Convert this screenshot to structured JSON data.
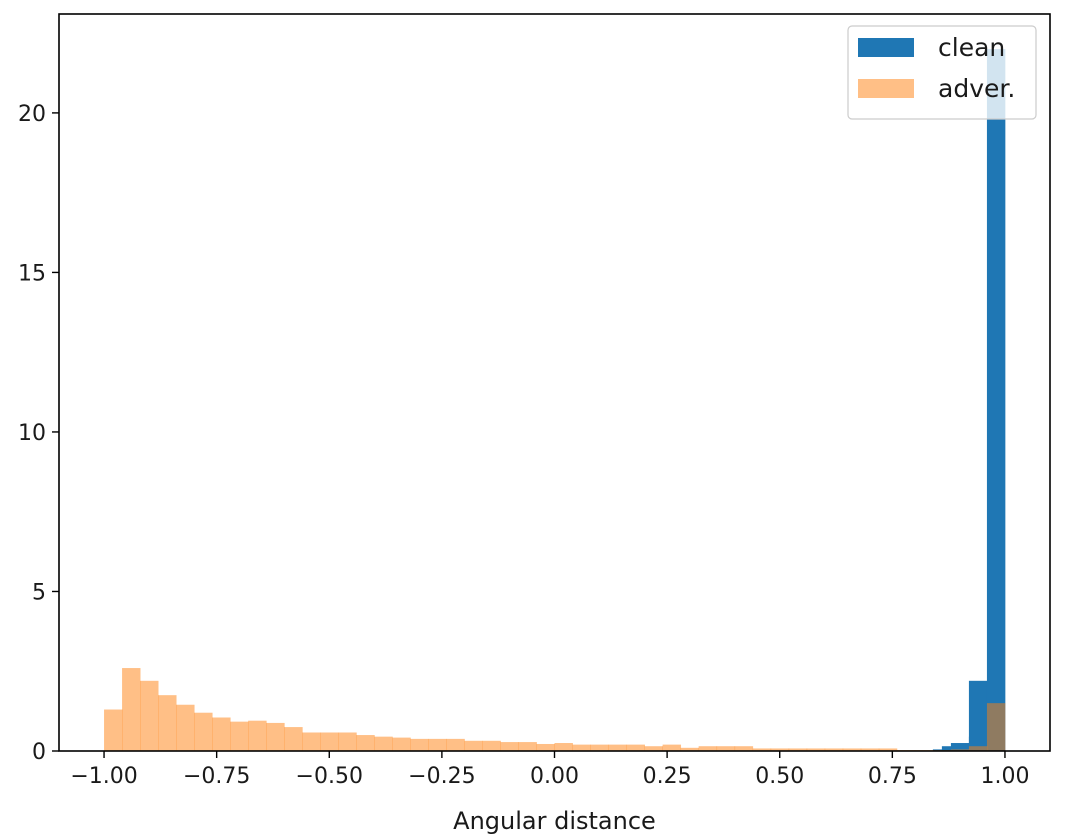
{
  "chart_data": {
    "type": "bar",
    "subtype": "overlaid histogram",
    "title": "",
    "xlabel": "Angular distance",
    "ylabel": "",
    "xlim": [
      -1.1,
      1.1
    ],
    "ylim": [
      0,
      23.1
    ],
    "grid": false,
    "legend_position": "top-right",
    "x_ticks": [
      -1.0,
      -0.75,
      -0.5,
      -0.25,
      0.0,
      0.25,
      0.5,
      0.75,
      1.0
    ],
    "x_tick_labels": [
      "−1.00",
      "−0.75",
      "−0.50",
      "−0.25",
      "0.00",
      "0.25",
      "0.50",
      "0.75",
      "1.00"
    ],
    "y_ticks": [
      0,
      5,
      10,
      15,
      20
    ],
    "y_tick_labels": [
      "0",
      "5",
      "10",
      "15",
      "20"
    ],
    "bin_width": 0.04,
    "series": [
      {
        "name": "clean",
        "color": "#1f77b4",
        "opacity": 1.0,
        "bins": [
          {
            "x0": 0.84,
            "value": 0.05
          },
          {
            "x0": 0.86,
            "value": 0.15
          },
          {
            "x0": 0.88,
            "value": 0.25
          },
          {
            "x0": 0.92,
            "value": 0.45
          },
          {
            "x0": 0.92,
            "value": 2.2
          },
          {
            "x0": 0.96,
            "value": 22.0
          }
        ]
      },
      {
        "name": "adver.",
        "color": "#ff7f0e",
        "opacity": 0.5,
        "bins": [
          {
            "x0": -1.0,
            "value": 1.3
          },
          {
            "x0": -0.96,
            "value": 2.6
          },
          {
            "x0": -0.92,
            "value": 2.2
          },
          {
            "x0": -0.88,
            "value": 1.75
          },
          {
            "x0": -0.84,
            "value": 1.45
          },
          {
            "x0": -0.8,
            "value": 1.2
          },
          {
            "x0": -0.76,
            "value": 1.05
          },
          {
            "x0": -0.72,
            "value": 0.92
          },
          {
            "x0": -0.68,
            "value": 0.95
          },
          {
            "x0": -0.64,
            "value": 0.88
          },
          {
            "x0": -0.6,
            "value": 0.75
          },
          {
            "x0": -0.56,
            "value": 0.58
          },
          {
            "x0": -0.52,
            "value": 0.58
          },
          {
            "x0": -0.48,
            "value": 0.58
          },
          {
            "x0": -0.44,
            "value": 0.5
          },
          {
            "x0": -0.4,
            "value": 0.45
          },
          {
            "x0": -0.36,
            "value": 0.42
          },
          {
            "x0": -0.32,
            "value": 0.38
          },
          {
            "x0": -0.28,
            "value": 0.38
          },
          {
            "x0": -0.24,
            "value": 0.38
          },
          {
            "x0": -0.2,
            "value": 0.32
          },
          {
            "x0": -0.16,
            "value": 0.32
          },
          {
            "x0": -0.12,
            "value": 0.28
          },
          {
            "x0": -0.08,
            "value": 0.28
          },
          {
            "x0": -0.04,
            "value": 0.22
          },
          {
            "x0": 0.0,
            "value": 0.25
          },
          {
            "x0": 0.04,
            "value": 0.2
          },
          {
            "x0": 0.08,
            "value": 0.2
          },
          {
            "x0": 0.12,
            "value": 0.2
          },
          {
            "x0": 0.16,
            "value": 0.2
          },
          {
            "x0": 0.2,
            "value": 0.15
          },
          {
            "x0": 0.24,
            "value": 0.2
          },
          {
            "x0": 0.28,
            "value": 0.1
          },
          {
            "x0": 0.32,
            "value": 0.15
          },
          {
            "x0": 0.36,
            "value": 0.15
          },
          {
            "x0": 0.4,
            "value": 0.15
          },
          {
            "x0": 0.44,
            "value": 0.08
          },
          {
            "x0": 0.48,
            "value": 0.08
          },
          {
            "x0": 0.52,
            "value": 0.08
          },
          {
            "x0": 0.56,
            "value": 0.08
          },
          {
            "x0": 0.6,
            "value": 0.08
          },
          {
            "x0": 0.64,
            "value": 0.08
          },
          {
            "x0": 0.68,
            "value": 0.08
          },
          {
            "x0": 0.72,
            "value": 0.08
          },
          {
            "x0": 0.76,
            "value": 0.03
          },
          {
            "x0": 0.8,
            "value": 0.03
          },
          {
            "x0": 0.84,
            "value": 0.03
          },
          {
            "x0": 0.88,
            "value": 0.05
          },
          {
            "x0": 0.92,
            "value": 0.15
          },
          {
            "x0": 0.96,
            "value": 1.5
          }
        ]
      }
    ]
  }
}
